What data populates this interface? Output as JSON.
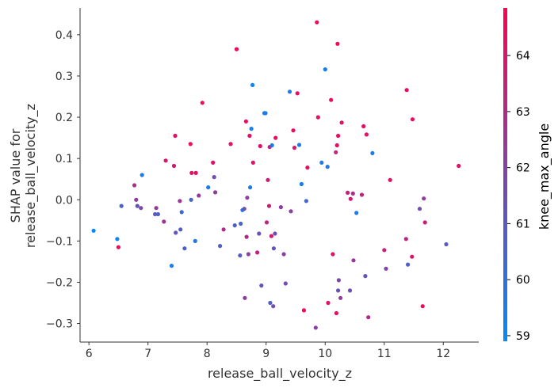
{
  "chart_data": {
    "type": "scatter",
    "xlabel": "release_ball_velocity_z",
    "ylabel_lines": [
      "SHAP value for",
      "release_ball_velocity_z"
    ],
    "xlim": [
      5.85,
      12.6
    ],
    "ylim": [
      -0.345,
      0.465
    ],
    "xticks": [
      6,
      7,
      8,
      9,
      10,
      11,
      12
    ],
    "yticks": [
      -0.3,
      -0.2,
      -0.1,
      0.0,
      0.1,
      0.2,
      0.3,
      0.4
    ],
    "ytick_labels": [
      "−0.3",
      "−0.2",
      "−0.1",
      "0.0",
      "0.1",
      "0.2",
      "0.3",
      "0.4"
    ],
    "grid": false,
    "colorbar": {
      "label": "knee_max_angle",
      "range": [
        58.9,
        64.85
      ],
      "ticks": [
        59,
        60,
        61,
        62,
        63,
        64
      ],
      "low_color": "#008bfb",
      "high_color": "#ff0051"
    },
    "points": [
      {
        "x": 6.08,
        "y": -0.075,
        "c": 59.0
      },
      {
        "x": 6.48,
        "y": -0.095,
        "c": 59.2
      },
      {
        "x": 6.5,
        "y": -0.115,
        "c": 64.5
      },
      {
        "x": 6.55,
        "y": -0.015,
        "c": 60.6
      },
      {
        "x": 6.77,
        "y": 0.035,
        "c": 62.8
      },
      {
        "x": 6.8,
        "y": 0.0,
        "c": 62.2
      },
      {
        "x": 6.82,
        "y": -0.015,
        "c": 61.3
      },
      {
        "x": 6.88,
        "y": -0.02,
        "c": 61.8
      },
      {
        "x": 6.9,
        "y": 0.06,
        "c": 59.6
      },
      {
        "x": 7.12,
        "y": -0.035,
        "c": 61.0
      },
      {
        "x": 7.14,
        "y": -0.02,
        "c": 62.5
      },
      {
        "x": 7.17,
        "y": -0.035,
        "c": 60.9
      },
      {
        "x": 7.27,
        "y": -0.053,
        "c": 62.5
      },
      {
        "x": 7.3,
        "y": 0.095,
        "c": 64.0
      },
      {
        "x": 7.4,
        "y": -0.16,
        "c": 59.5
      },
      {
        "x": 7.44,
        "y": 0.082,
        "c": 63.8
      },
      {
        "x": 7.46,
        "y": 0.155,
        "c": 64.2
      },
      {
        "x": 7.47,
        "y": -0.08,
        "c": 61.2
      },
      {
        "x": 7.54,
        "y": -0.003,
        "c": 62.5
      },
      {
        "x": 7.55,
        "y": -0.072,
        "c": 60.8
      },
      {
        "x": 7.57,
        "y": -0.03,
        "c": 60.3
      },
      {
        "x": 7.62,
        "y": -0.118,
        "c": 60.7
      },
      {
        "x": 7.72,
        "y": 0.135,
        "c": 64.4
      },
      {
        "x": 7.73,
        "y": 0.0,
        "c": 60.6
      },
      {
        "x": 7.74,
        "y": 0.065,
        "c": 64.1
      },
      {
        "x": 7.8,
        "y": -0.1,
        "c": 59.8
      },
      {
        "x": 7.81,
        "y": 0.065,
        "c": 64.4
      },
      {
        "x": 7.86,
        "y": 0.01,
        "c": 62.3
      },
      {
        "x": 7.92,
        "y": 0.235,
        "c": 64.3
      },
      {
        "x": 8.02,
        "y": 0.03,
        "c": 59.6
      },
      {
        "x": 8.1,
        "y": 0.09,
        "c": 64.2
      },
      {
        "x": 8.12,
        "y": 0.055,
        "c": 61.6
      },
      {
        "x": 8.14,
        "y": 0.018,
        "c": 62.2
      },
      {
        "x": 8.22,
        "y": -0.112,
        "c": 60.8
      },
      {
        "x": 8.28,
        "y": -0.072,
        "c": 63.0
      },
      {
        "x": 8.4,
        "y": 0.135,
        "c": 64.2
      },
      {
        "x": 8.47,
        "y": -0.062,
        "c": 60.8
      },
      {
        "x": 8.5,
        "y": 0.365,
        "c": 64.6
      },
      {
        "x": 8.56,
        "y": -0.135,
        "c": 61.0
      },
      {
        "x": 8.57,
        "y": -0.058,
        "c": 60.6
      },
      {
        "x": 8.6,
        "y": -0.025,
        "c": 59.6
      },
      {
        "x": 8.63,
        "y": -0.022,
        "c": 61.4
      },
      {
        "x": 8.64,
        "y": -0.238,
        "c": 62.2
      },
      {
        "x": 8.66,
        "y": 0.19,
        "c": 64.3
      },
      {
        "x": 8.67,
        "y": -0.09,
        "c": 63.0
      },
      {
        "x": 8.68,
        "y": 0.005,
        "c": 62.1
      },
      {
        "x": 8.7,
        "y": -0.132,
        "c": 62.1
      },
      {
        "x": 8.72,
        "y": 0.155,
        "c": 64.3
      },
      {
        "x": 8.73,
        "y": 0.03,
        "c": 59.5
      },
      {
        "x": 8.75,
        "y": 0.172,
        "c": 59.4
      },
      {
        "x": 8.77,
        "y": 0.278,
        "c": 59.2
      },
      {
        "x": 8.78,
        "y": 0.09,
        "c": 64.0
      },
      {
        "x": 8.85,
        "y": -0.128,
        "c": 63.4
      },
      {
        "x": 8.88,
        "y": -0.082,
        "c": 61.4
      },
      {
        "x": 8.9,
        "y": 0.13,
        "c": 64.2
      },
      {
        "x": 8.92,
        "y": -0.208,
        "c": 61.3
      },
      {
        "x": 8.97,
        "y": 0.21,
        "c": 59.2
      },
      {
        "x": 8.99,
        "y": 0.21,
        "c": 59.6
      },
      {
        "x": 9.01,
        "y": -0.055,
        "c": 63.2
      },
      {
        "x": 9.03,
        "y": 0.048,
        "c": 63.6
      },
      {
        "x": 9.05,
        "y": -0.015,
        "c": 63.6
      },
      {
        "x": 9.06,
        "y": 0.128,
        "c": 63.0
      },
      {
        "x": 9.07,
        "y": -0.25,
        "c": 60.8
      },
      {
        "x": 9.09,
        "y": -0.088,
        "c": 63.8
      },
      {
        "x": 9.1,
        "y": 0.132,
        "c": 59.5
      },
      {
        "x": 9.12,
        "y": -0.258,
        "c": 61.5
      },
      {
        "x": 9.13,
        "y": -0.118,
        "c": 61.2
      },
      {
        "x": 9.15,
        "y": -0.082,
        "c": 61.6
      },
      {
        "x": 9.16,
        "y": 0.15,
        "c": 64.4
      },
      {
        "x": 9.25,
        "y": -0.018,
        "c": 62.1
      },
      {
        "x": 9.3,
        "y": -0.132,
        "c": 62.1
      },
      {
        "x": 9.33,
        "y": -0.203,
        "c": 61.6
      },
      {
        "x": 9.4,
        "y": 0.262,
        "c": 59.6
      },
      {
        "x": 9.42,
        "y": -0.028,
        "c": 62.0
      },
      {
        "x": 9.46,
        "y": 0.168,
        "c": 64.3
      },
      {
        "x": 9.48,
        "y": 0.126,
        "c": 63.8
      },
      {
        "x": 9.53,
        "y": 0.258,
        "c": 64.4
      },
      {
        "x": 9.56,
        "y": 0.133,
        "c": 59.5
      },
      {
        "x": 9.6,
        "y": 0.038,
        "c": 59.4
      },
      {
        "x": 9.64,
        "y": -0.268,
        "c": 64.8
      },
      {
        "x": 9.68,
        "y": -0.003,
        "c": 60.5
      },
      {
        "x": 9.7,
        "y": 0.078,
        "c": 64.1
      },
      {
        "x": 9.84,
        "y": -0.31,
        "c": 62.1
      },
      {
        "x": 9.86,
        "y": 0.43,
        "c": 64.4
      },
      {
        "x": 9.88,
        "y": 0.2,
        "c": 64.3
      },
      {
        "x": 9.94,
        "y": 0.09,
        "c": 59.6
      },
      {
        "x": 10.0,
        "y": 0.316,
        "c": 59.4
      },
      {
        "x": 10.04,
        "y": 0.08,
        "c": 59.7
      },
      {
        "x": 10.05,
        "y": -0.25,
        "c": 64.2
      },
      {
        "x": 10.1,
        "y": 0.242,
        "c": 64.3
      },
      {
        "x": 10.13,
        "y": -0.132,
        "c": 64.0
      },
      {
        "x": 10.18,
        "y": 0.115,
        "c": 63.2
      },
      {
        "x": 10.19,
        "y": -0.275,
        "c": 64.2
      },
      {
        "x": 10.2,
        "y": 0.132,
        "c": 64.2
      },
      {
        "x": 10.21,
        "y": 0.378,
        "c": 64.6
      },
      {
        "x": 10.22,
        "y": 0.155,
        "c": 64.3
      },
      {
        "x": 10.22,
        "y": -0.22,
        "c": 61.3
      },
      {
        "x": 10.23,
        "y": -0.195,
        "c": 61.8
      },
      {
        "x": 10.26,
        "y": -0.238,
        "c": 62.3
      },
      {
        "x": 10.28,
        "y": 0.187,
        "c": 64.1
      },
      {
        "x": 10.38,
        "y": 0.017,
        "c": 63.5
      },
      {
        "x": 10.42,
        "y": -0.22,
        "c": 61.5
      },
      {
        "x": 10.43,
        "y": 0.002,
        "c": 63.8
      },
      {
        "x": 10.47,
        "y": 0.015,
        "c": 63.0
      },
      {
        "x": 10.48,
        "y": -0.147,
        "c": 62.4
      },
      {
        "x": 10.53,
        "y": -0.032,
        "c": 59.5
      },
      {
        "x": 10.62,
        "y": 0.012,
        "c": 63.3
      },
      {
        "x": 10.65,
        "y": 0.178,
        "c": 64.3
      },
      {
        "x": 10.68,
        "y": -0.185,
        "c": 61.3
      },
      {
        "x": 10.7,
        "y": 0.158,
        "c": 64.1
      },
      {
        "x": 10.73,
        "y": -0.285,
        "c": 63.0
      },
      {
        "x": 10.8,
        "y": 0.113,
        "c": 59.6
      },
      {
        "x": 11.0,
        "y": -0.122,
        "c": 63.4
      },
      {
        "x": 11.03,
        "y": -0.167,
        "c": 62.0
      },
      {
        "x": 11.1,
        "y": 0.048,
        "c": 64.2
      },
      {
        "x": 11.37,
        "y": -0.095,
        "c": 63.2
      },
      {
        "x": 11.38,
        "y": 0.266,
        "c": 64.4
      },
      {
        "x": 11.4,
        "y": -0.157,
        "c": 60.8
      },
      {
        "x": 11.47,
        "y": -0.138,
        "c": 64.0
      },
      {
        "x": 11.48,
        "y": 0.195,
        "c": 64.3
      },
      {
        "x": 11.6,
        "y": -0.022,
        "c": 61.6
      },
      {
        "x": 11.65,
        "y": -0.258,
        "c": 64.4
      },
      {
        "x": 11.67,
        "y": 0.003,
        "c": 62.3
      },
      {
        "x": 11.69,
        "y": -0.055,
        "c": 63.5
      },
      {
        "x": 12.05,
        "y": -0.108,
        "c": 61.0
      },
      {
        "x": 12.26,
        "y": 0.082,
        "c": 64.3
      }
    ]
  }
}
